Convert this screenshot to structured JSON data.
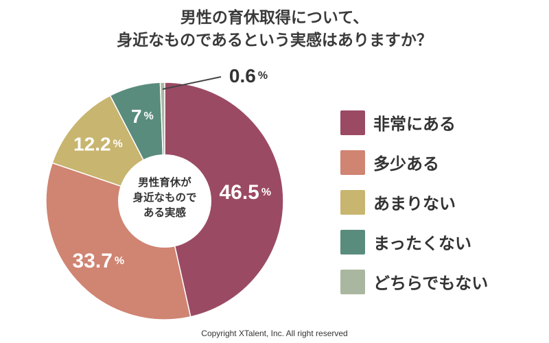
{
  "title": {
    "line1": "男性の育休取得について、",
    "line2": "身近なものであるという実感はありますか？"
  },
  "center_label": {
    "line1": "男性育休が",
    "line2": "身近なもので",
    "line3": "ある実感"
  },
  "footer": "Copyright XTalent, Inc. All right reserved",
  "chart_data": {
    "type": "pie",
    "title": "男性の育休取得について、身近なものであるという実感はありますか？",
    "inner_label": "男性育休が身近なものである実感",
    "unit": "%",
    "slices": [
      {
        "label": "非常にある",
        "value": 46.5,
        "display": "46.5",
        "color": "#9b4a64"
      },
      {
        "label": "多少ある",
        "value": 33.7,
        "display": "33.7",
        "color": "#d08472"
      },
      {
        "label": "あまりない",
        "value": 12.2,
        "display": "12.2",
        "color": "#c8b56f"
      },
      {
        "label": "まったくない",
        "value": 7,
        "display": "7",
        "color": "#5a8c7e"
      },
      {
        "label": "どちらでもない",
        "value": 0.6,
        "display": "0.6",
        "color": "#aab7a0"
      }
    ],
    "legend_position": "right"
  }
}
